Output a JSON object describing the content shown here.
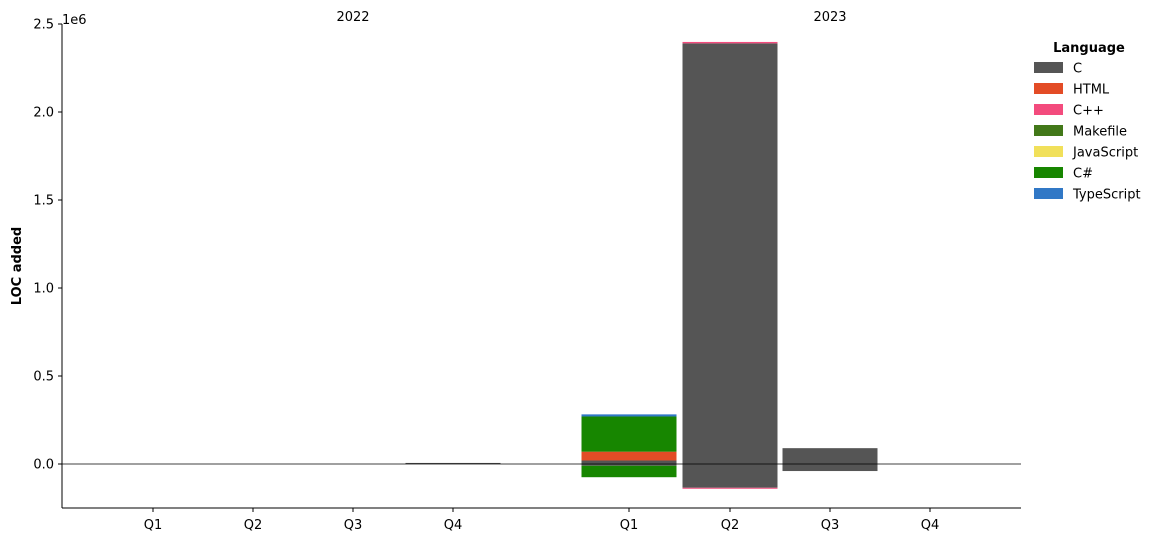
{
  "chart_data": {
    "type": "bar",
    "stacked": true,
    "ylabel": "LOC added",
    "y_offset_label": "1e6",
    "ylim": [
      -250000,
      2500000
    ],
    "yticks": [
      0,
      500000,
      1000000,
      1500000,
      2000000,
      2500000
    ],
    "ytick_labels": [
      "0.0",
      "0.5",
      "1.0",
      "1.5",
      "2.0",
      "2.5"
    ],
    "groups": [
      {
        "label": "2022",
        "categories": [
          "Q1",
          "Q2",
          "Q3",
          "Q4"
        ]
      },
      {
        "label": "2023",
        "categories": [
          "Q1",
          "Q2",
          "Q3",
          "Q4"
        ]
      }
    ],
    "legend": {
      "title": "Language",
      "position": "right"
    },
    "series": [
      {
        "name": "C",
        "color": "#555555",
        "values": [
          0,
          0,
          0,
          6000,
          20000,
          2390000,
          90000,
          0
        ],
        "negative": [
          0,
          0,
          0,
          0,
          -10000,
          -135000,
          -40000,
          0
        ]
      },
      {
        "name": "HTML",
        "color": "#e34c26",
        "values": [
          0,
          0,
          0,
          0,
          50000,
          0,
          0,
          0
        ],
        "negative": [
          0,
          0,
          0,
          0,
          0,
          0,
          0,
          0
        ]
      },
      {
        "name": "C++",
        "color": "#f34b7d",
        "values": [
          0,
          0,
          0,
          0,
          0,
          8000,
          0,
          0
        ],
        "negative": [
          0,
          0,
          0,
          0,
          0,
          -4000,
          0,
          0
        ]
      },
      {
        "name": "Makefile",
        "color": "#427819",
        "values": [
          0,
          0,
          0,
          0,
          0,
          0,
          0,
          0
        ],
        "negative": [
          0,
          0,
          0,
          0,
          0,
          0,
          0,
          0
        ]
      },
      {
        "name": "JavaScript",
        "color": "#f1e05a",
        "values": [
          0,
          0,
          0,
          0,
          0,
          0,
          0,
          0
        ],
        "negative": [
          0,
          0,
          0,
          0,
          0,
          0,
          0,
          0
        ]
      },
      {
        "name": "C#",
        "color": "#178600",
        "values": [
          0,
          0,
          0,
          0,
          200000,
          0,
          0,
          0
        ],
        "negative": [
          0,
          0,
          0,
          0,
          -65000,
          0,
          0,
          0
        ]
      },
      {
        "name": "TypeScript",
        "color": "#3178c6",
        "values": [
          0,
          0,
          0,
          0,
          12000,
          0,
          0,
          0
        ],
        "negative": [
          0,
          0,
          0,
          0,
          0,
          0,
          0,
          0
        ]
      }
    ]
  }
}
